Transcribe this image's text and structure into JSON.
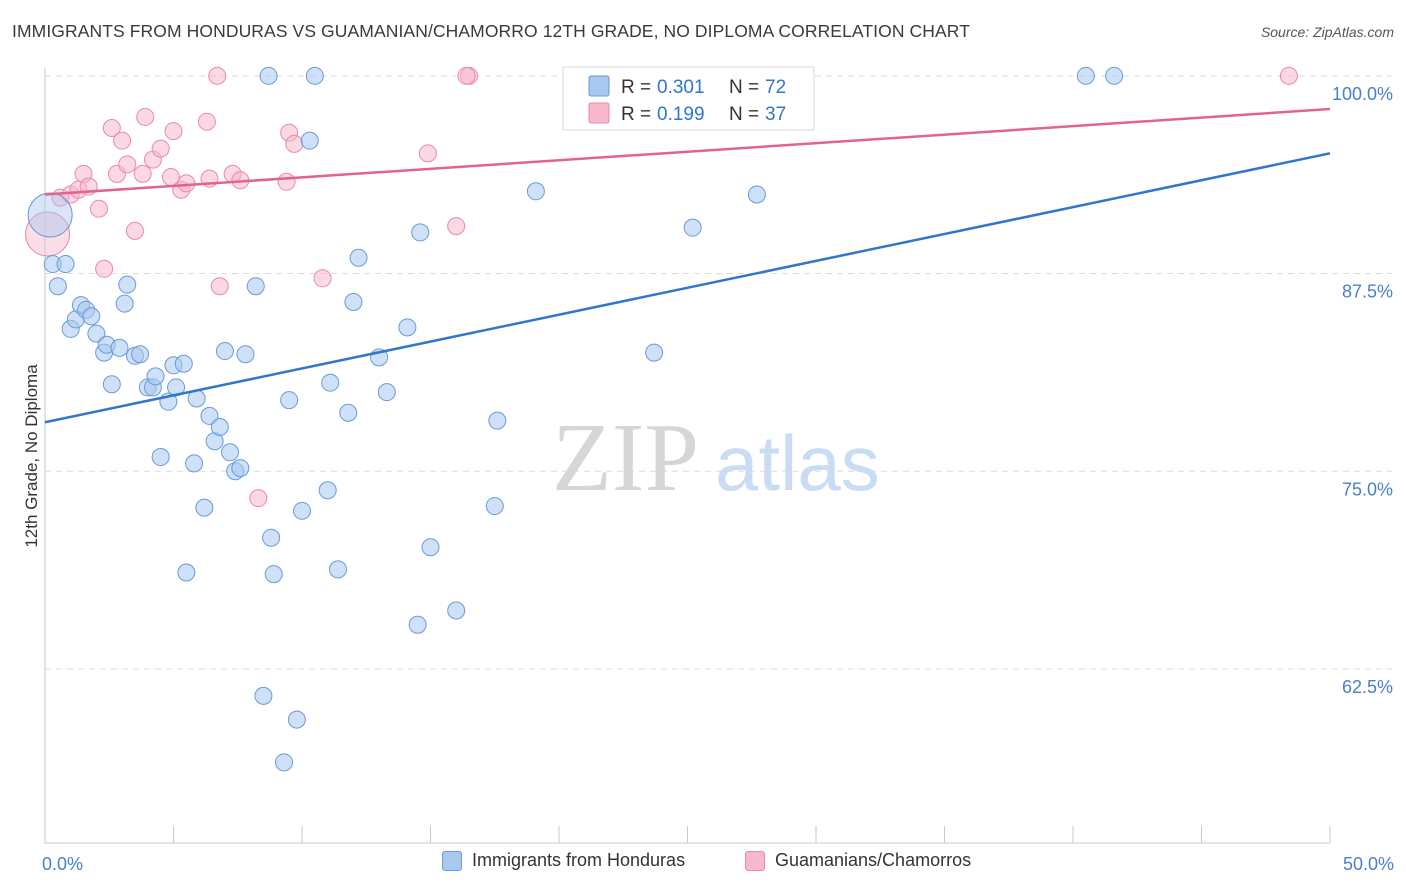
{
  "title": "IMMIGRANTS FROM HONDURAS VS GUAMANIAN/CHAMORRO 12TH GRADE, NO DIPLOMA CORRELATION CHART",
  "source": "Source: ZipAtlas.com",
  "watermark": {
    "zip": "ZIP",
    "atlas": "atlas"
  },
  "colors": {
    "blue_fill": "#a8c8f0",
    "blue_stroke": "#6a9ad8",
    "blue_line": "#2f76cc",
    "pink_fill": "#f7b8cb",
    "pink_stroke": "#e98aa8",
    "pink_line": "#e0648f",
    "axis_text": "#4a7fcc",
    "grid": "#dcdcdc"
  },
  "legend": {
    "rows": [
      {
        "r_label": "R =",
        "r_value": "0.301",
        "n_label": "N =",
        "n_value": "72",
        "series": "blue"
      },
      {
        "r_label": "R =",
        "r_value": "0.199",
        "n_label": "N =",
        "n_value": "37",
        "series": "pink"
      }
    ]
  },
  "bottom_legend": [
    {
      "label": "Immigrants from Honduras",
      "series": "blue"
    },
    {
      "label": "Guamanians/Chamorros",
      "series": "pink"
    }
  ],
  "chart_data": {
    "type": "scatter",
    "title": "IMMIGRANTS FROM HONDURAS VS GUAMANIAN/CHAMORRO 12TH GRADE, NO DIPLOMA CORRELATION CHART",
    "xlabel": "",
    "ylabel": "12th Grade, No Diploma",
    "xlim": [
      0,
      50
    ],
    "ylim": [
      51.5,
      101
    ],
    "x_tick_labels": [
      {
        "value": 0,
        "label": "0.0%"
      },
      {
        "value": 50,
        "label": "50.0%"
      }
    ],
    "x_minor_ticks": [
      0,
      5,
      10,
      15,
      20,
      25,
      30,
      35,
      40,
      45,
      50
    ],
    "y_ticks": [
      {
        "value": 100,
        "label": "100.0%"
      },
      {
        "value": 87.5,
        "label": "87.5%"
      },
      {
        "value": 75,
        "label": "75.0%"
      },
      {
        "value": 62.5,
        "label": "62.5%"
      }
    ],
    "grid": true,
    "legend_position": "top-center",
    "series": [
      {
        "name": "Immigrants from Honduras",
        "color": "#a8c8f0",
        "trend": {
          "x": [
            0,
            50
          ],
          "y": [
            78.1,
            95.1
          ]
        },
        "points": [
          [
            0.2,
            91.2,
            "big"
          ],
          [
            0.3,
            88.1
          ],
          [
            0.5,
            86.7
          ],
          [
            0.8,
            88.1
          ],
          [
            1.0,
            84.0
          ],
          [
            1.2,
            84.6
          ],
          [
            1.4,
            85.5
          ],
          [
            1.6,
            85.2
          ],
          [
            1.8,
            84.8
          ],
          [
            2.0,
            83.7
          ],
          [
            2.3,
            82.5
          ],
          [
            2.4,
            83.0
          ],
          [
            2.6,
            80.5
          ],
          [
            2.9,
            82.8
          ],
          [
            3.1,
            85.6
          ],
          [
            3.2,
            86.8
          ],
          [
            3.5,
            82.3
          ],
          [
            3.7,
            82.4
          ],
          [
            4.0,
            80.3
          ],
          [
            4.2,
            80.3
          ],
          [
            4.3,
            81.0
          ],
          [
            4.5,
            75.9
          ],
          [
            4.8,
            79.4
          ],
          [
            5.0,
            81.7
          ],
          [
            5.1,
            80.3
          ],
          [
            5.4,
            81.8
          ],
          [
            5.5,
            68.6
          ],
          [
            5.8,
            75.5
          ],
          [
            5.9,
            79.6
          ],
          [
            6.2,
            72.7
          ],
          [
            6.4,
            78.5
          ],
          [
            6.6,
            76.9
          ],
          [
            6.8,
            77.8
          ],
          [
            7.0,
            82.6
          ],
          [
            7.2,
            76.2
          ],
          [
            7.4,
            75.0
          ],
          [
            7.6,
            75.2
          ],
          [
            7.8,
            82.4
          ],
          [
            8.2,
            86.7
          ],
          [
            8.5,
            60.8
          ],
          [
            8.7,
            100.0
          ],
          [
            8.8,
            70.8
          ],
          [
            8.9,
            68.5
          ],
          [
            9.3,
            56.6
          ],
          [
            9.5,
            79.5
          ],
          [
            9.8,
            59.3
          ],
          [
            10.0,
            72.5
          ],
          [
            10.3,
            95.9
          ],
          [
            10.5,
            100.0
          ],
          [
            11.0,
            73.8
          ],
          [
            11.1,
            80.6
          ],
          [
            11.4,
            68.8
          ],
          [
            11.8,
            78.7
          ],
          [
            12.0,
            85.7
          ],
          [
            12.2,
            88.5
          ],
          [
            13.0,
            82.2
          ],
          [
            13.3,
            80.0
          ],
          [
            14.1,
            84.1
          ],
          [
            14.5,
            65.3
          ],
          [
            14.6,
            90.1
          ],
          [
            15.0,
            70.2
          ],
          [
            16.0,
            66.2
          ],
          [
            17.5,
            72.8
          ],
          [
            17.6,
            78.2
          ],
          [
            19.1,
            92.7
          ],
          [
            23.7,
            82.5
          ],
          [
            24.8,
            100.0
          ],
          [
            25.2,
            90.4
          ],
          [
            27.7,
            92.5
          ],
          [
            28.5,
            100.0
          ],
          [
            40.5,
            100.0
          ],
          [
            41.6,
            100.0
          ]
        ]
      },
      {
        "name": "Guamanians/Chamorros",
        "color": "#f7b8cb",
        "trend": {
          "x": [
            0,
            50
          ],
          "y": [
            92.5,
            97.9
          ]
        },
        "points": [
          [
            0.1,
            90.0,
            "big"
          ],
          [
            0.6,
            92.3
          ],
          [
            1.0,
            92.5
          ],
          [
            1.3,
            92.8
          ],
          [
            1.5,
            93.8
          ],
          [
            1.7,
            93.0
          ],
          [
            2.1,
            91.6
          ],
          [
            2.3,
            87.8
          ],
          [
            2.6,
            96.7
          ],
          [
            2.8,
            93.8
          ],
          [
            3.0,
            95.9
          ],
          [
            3.2,
            94.4
          ],
          [
            3.5,
            90.2
          ],
          [
            3.8,
            93.8
          ],
          [
            3.9,
            97.4
          ],
          [
            4.2,
            94.7
          ],
          [
            4.5,
            95.4
          ],
          [
            4.9,
            93.6
          ],
          [
            5.0,
            96.5
          ],
          [
            5.3,
            92.8
          ],
          [
            5.5,
            93.2
          ],
          [
            6.3,
            97.1
          ],
          [
            6.4,
            93.5
          ],
          [
            6.7,
            100.0
          ],
          [
            6.8,
            86.7
          ],
          [
            7.3,
            93.8
          ],
          [
            7.6,
            93.4
          ],
          [
            8.3,
            73.3
          ],
          [
            9.4,
            93.3
          ],
          [
            9.5,
            96.4
          ],
          [
            9.7,
            95.7
          ],
          [
            10.8,
            87.2
          ],
          [
            14.9,
            95.1
          ],
          [
            16.0,
            90.5
          ],
          [
            16.5,
            100.0
          ],
          [
            48.4,
            100.0
          ],
          [
            16.4,
            100.0
          ]
        ]
      }
    ]
  }
}
